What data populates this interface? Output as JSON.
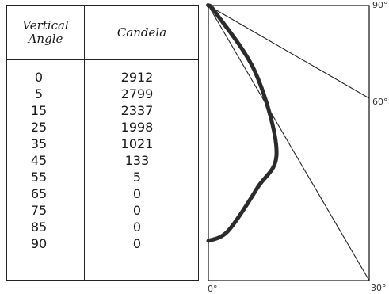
{
  "table": {
    "header_angle_line1": "Vertical",
    "header_angle_line2": "Angle",
    "header_candela": "Candela",
    "rows": [
      {
        "angle": "0",
        "candela": "2912"
      },
      {
        "angle": "5",
        "candela": "2799"
      },
      {
        "angle": "15",
        "candela": "2337"
      },
      {
        "angle": "25",
        "candela": "1998"
      },
      {
        "angle": "35",
        "candela": "1021"
      },
      {
        "angle": "45",
        "candela": "133"
      },
      {
        "angle": "55",
        "candela": "5"
      },
      {
        "angle": "65",
        "candela": "0"
      },
      {
        "angle": "75",
        "candela": "0"
      },
      {
        "angle": "85",
        "candela": "0"
      },
      {
        "angle": "90",
        "candela": "0"
      }
    ]
  },
  "chart_data": {
    "type": "line",
    "title": "",
    "xlabel": "",
    "ylabel": "",
    "curve_color": "#2b2b2b",
    "x": [
      0,
      5,
      15,
      25,
      35,
      45,
      55,
      65,
      75,
      85,
      90
    ],
    "y": [
      2912,
      2799,
      2337,
      1998,
      1021,
      133,
      5,
      0,
      0,
      0,
      0
    ],
    "angle_labels": [
      "0°",
      "30°",
      "60°",
      "90°"
    ]
  }
}
